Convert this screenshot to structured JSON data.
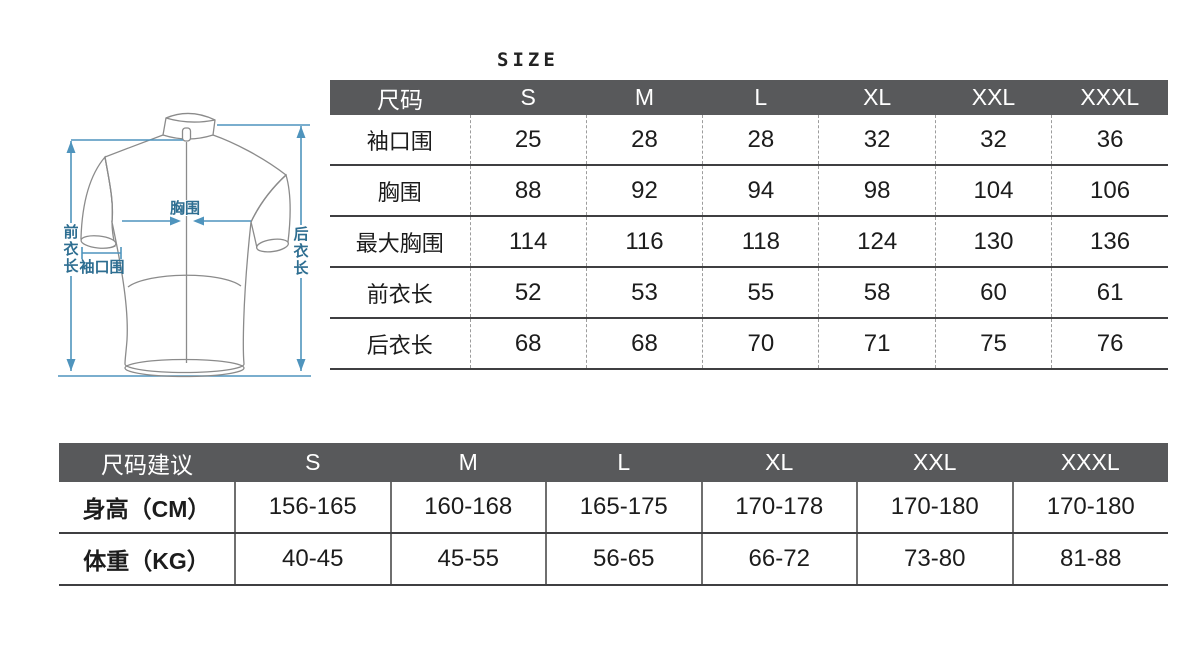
{
  "size_label": "SIZE",
  "colors": {
    "header_bg": "#58595b",
    "header_text": "#ffffff",
    "grid_dark": "#3f3f41",
    "grid_dashed": "#9c9c9c",
    "grid_solid": "#6f6f6f",
    "text": "#1c1c1c",
    "outline": "#8b8b8b",
    "annotation": "#4f94bd",
    "annotation_text": "#2e6e91"
  },
  "diagram": {
    "labels": {
      "chest": "胸围",
      "front_length": "前衣长",
      "cuff": "袖口围",
      "back_length": "后衣长"
    }
  },
  "size_table": {
    "header": [
      "尺码",
      "S",
      "M",
      "L",
      "XL",
      "XXL",
      "XXXL"
    ],
    "rows": [
      {
        "label": "袖口围",
        "values": [
          "25",
          "28",
          "28",
          "32",
          "32",
          "36"
        ]
      },
      {
        "label": "胸围",
        "values": [
          "88",
          "92",
          "94",
          "98",
          "104",
          "106"
        ]
      },
      {
        "label": "最大胸围",
        "values": [
          "114",
          "116",
          "118",
          "124",
          "130",
          "136"
        ]
      },
      {
        "label": "前衣长",
        "values": [
          "52",
          "53",
          "55",
          "58",
          "60",
          "61"
        ]
      },
      {
        "label": "后衣长",
        "values": [
          "68",
          "68",
          "70",
          "71",
          "75",
          "76"
        ]
      }
    ]
  },
  "suggestion_table": {
    "header": [
      "尺码建议",
      "S",
      "M",
      "L",
      "XL",
      "XXL",
      "XXXL"
    ],
    "rows": [
      {
        "label": "身高（CM）",
        "values": [
          "156-165",
          "160-168",
          "165-175",
          "170-178",
          "170-180",
          "170-180"
        ]
      },
      {
        "label": "体重（KG）",
        "values": [
          "40-45",
          "45-55",
          "56-65",
          "66-72",
          "73-80",
          "81-88"
        ]
      }
    ]
  }
}
